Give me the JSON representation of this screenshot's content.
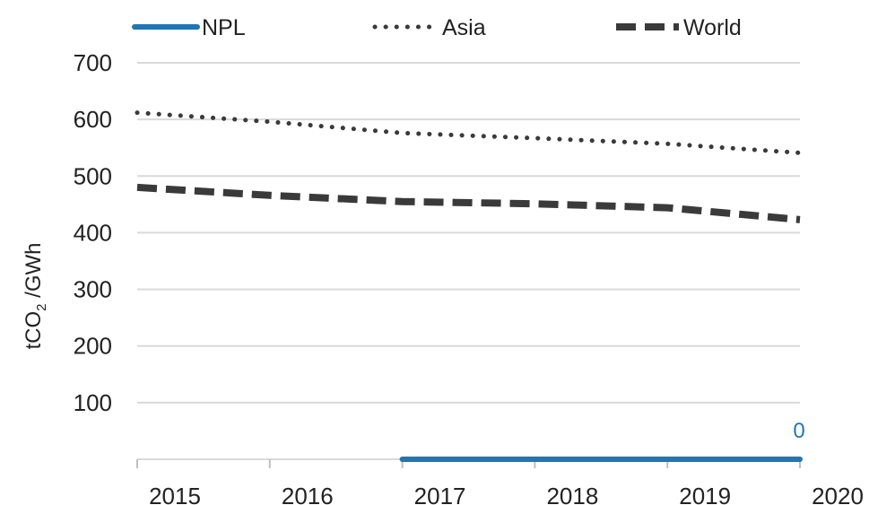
{
  "chart_data": {
    "type": "line",
    "x": [
      "2015",
      "2016",
      "2017",
      "2018",
      "2019",
      "2020"
    ],
    "ylim": [
      0,
      700
    ],
    "yticks": [
      100,
      200,
      300,
      400,
      500,
      600,
      700
    ],
    "ylabel": "tCO",
    "ylabel_subscript": "2",
    "ylabel_suffix": " /GWh",
    "legend_position": "top",
    "grid": true,
    "series": [
      {
        "name": "NPL",
        "style": "solid",
        "color": "#1F77B4",
        "points": [
          [
            2017,
            0
          ],
          [
            2018,
            0
          ],
          [
            2019,
            0
          ],
          [
            2020,
            0
          ]
        ],
        "data_label": "0"
      },
      {
        "name": "Asia",
        "style": "dotted",
        "color": "#3A3A3A",
        "points": [
          [
            2015,
            612
          ],
          [
            2016,
            596
          ],
          [
            2017,
            576
          ],
          [
            2018,
            567
          ],
          [
            2019,
            557
          ],
          [
            2020,
            541
          ]
        ]
      },
      {
        "name": "World",
        "style": "dashed",
        "color": "#3A3A3A",
        "points": [
          [
            2015,
            480
          ],
          [
            2016,
            466
          ],
          [
            2017,
            455
          ],
          [
            2018,
            451
          ],
          [
            2019,
            444
          ],
          [
            2020,
            423
          ]
        ]
      }
    ]
  }
}
